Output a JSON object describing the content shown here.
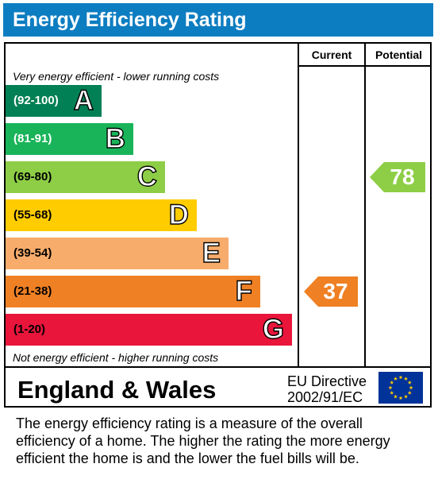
{
  "title": "Energy Efficiency Rating",
  "columns": {
    "current": "Current",
    "potential": "Potential"
  },
  "top_note": "Very energy efficient - lower running costs",
  "bottom_note": "Not energy efficient - higher running costs",
  "region": "England & Wales",
  "directive": {
    "line1": "EU Directive",
    "line2": "2002/91/EC"
  },
  "eu_flag_icon": "eu-flag-icon",
  "description": {
    "line1": "The energy efficiency rating is a measure of the overall",
    "line2": "efficiency of a home.  The higher the rating the more energy",
    "line3": "efficient the home is and the lower the fuel bills will be."
  },
  "chart_data": {
    "type": "bar",
    "title": "Energy Efficiency Rating",
    "categories": [
      "A",
      "B",
      "C",
      "D",
      "E",
      "F",
      "G"
    ],
    "bands": [
      {
        "letter": "A",
        "range": "(92-100)",
        "min": 92,
        "max": 100,
        "color": "#008054",
        "text_color": "#ffffff"
      },
      {
        "letter": "B",
        "range": "(81-91)",
        "min": 81,
        "max": 91,
        "color": "#19b459",
        "text_color": "#ffffff"
      },
      {
        "letter": "C",
        "range": "(69-80)",
        "min": 69,
        "max": 80,
        "color": "#8dce46",
        "text_color": "#000000"
      },
      {
        "letter": "D",
        "range": "(55-68)",
        "min": 55,
        "max": 68,
        "color": "#ffcc00",
        "text_color": "#000000"
      },
      {
        "letter": "E",
        "range": "(39-54)",
        "min": 39,
        "max": 54,
        "color": "#f7ac6b",
        "text_color": "#000000"
      },
      {
        "letter": "F",
        "range": "(21-38)",
        "min": 21,
        "max": 38,
        "color": "#ef8023",
        "text_color": "#000000"
      },
      {
        "letter": "G",
        "range": "(1-20)",
        "min": 1,
        "max": 20,
        "color": "#e9153b",
        "text_color": "#000000"
      }
    ],
    "current": {
      "value": 37,
      "band": "F",
      "color": "#ef8023"
    },
    "potential": {
      "value": 78,
      "band": "C",
      "color": "#8dce46"
    }
  }
}
